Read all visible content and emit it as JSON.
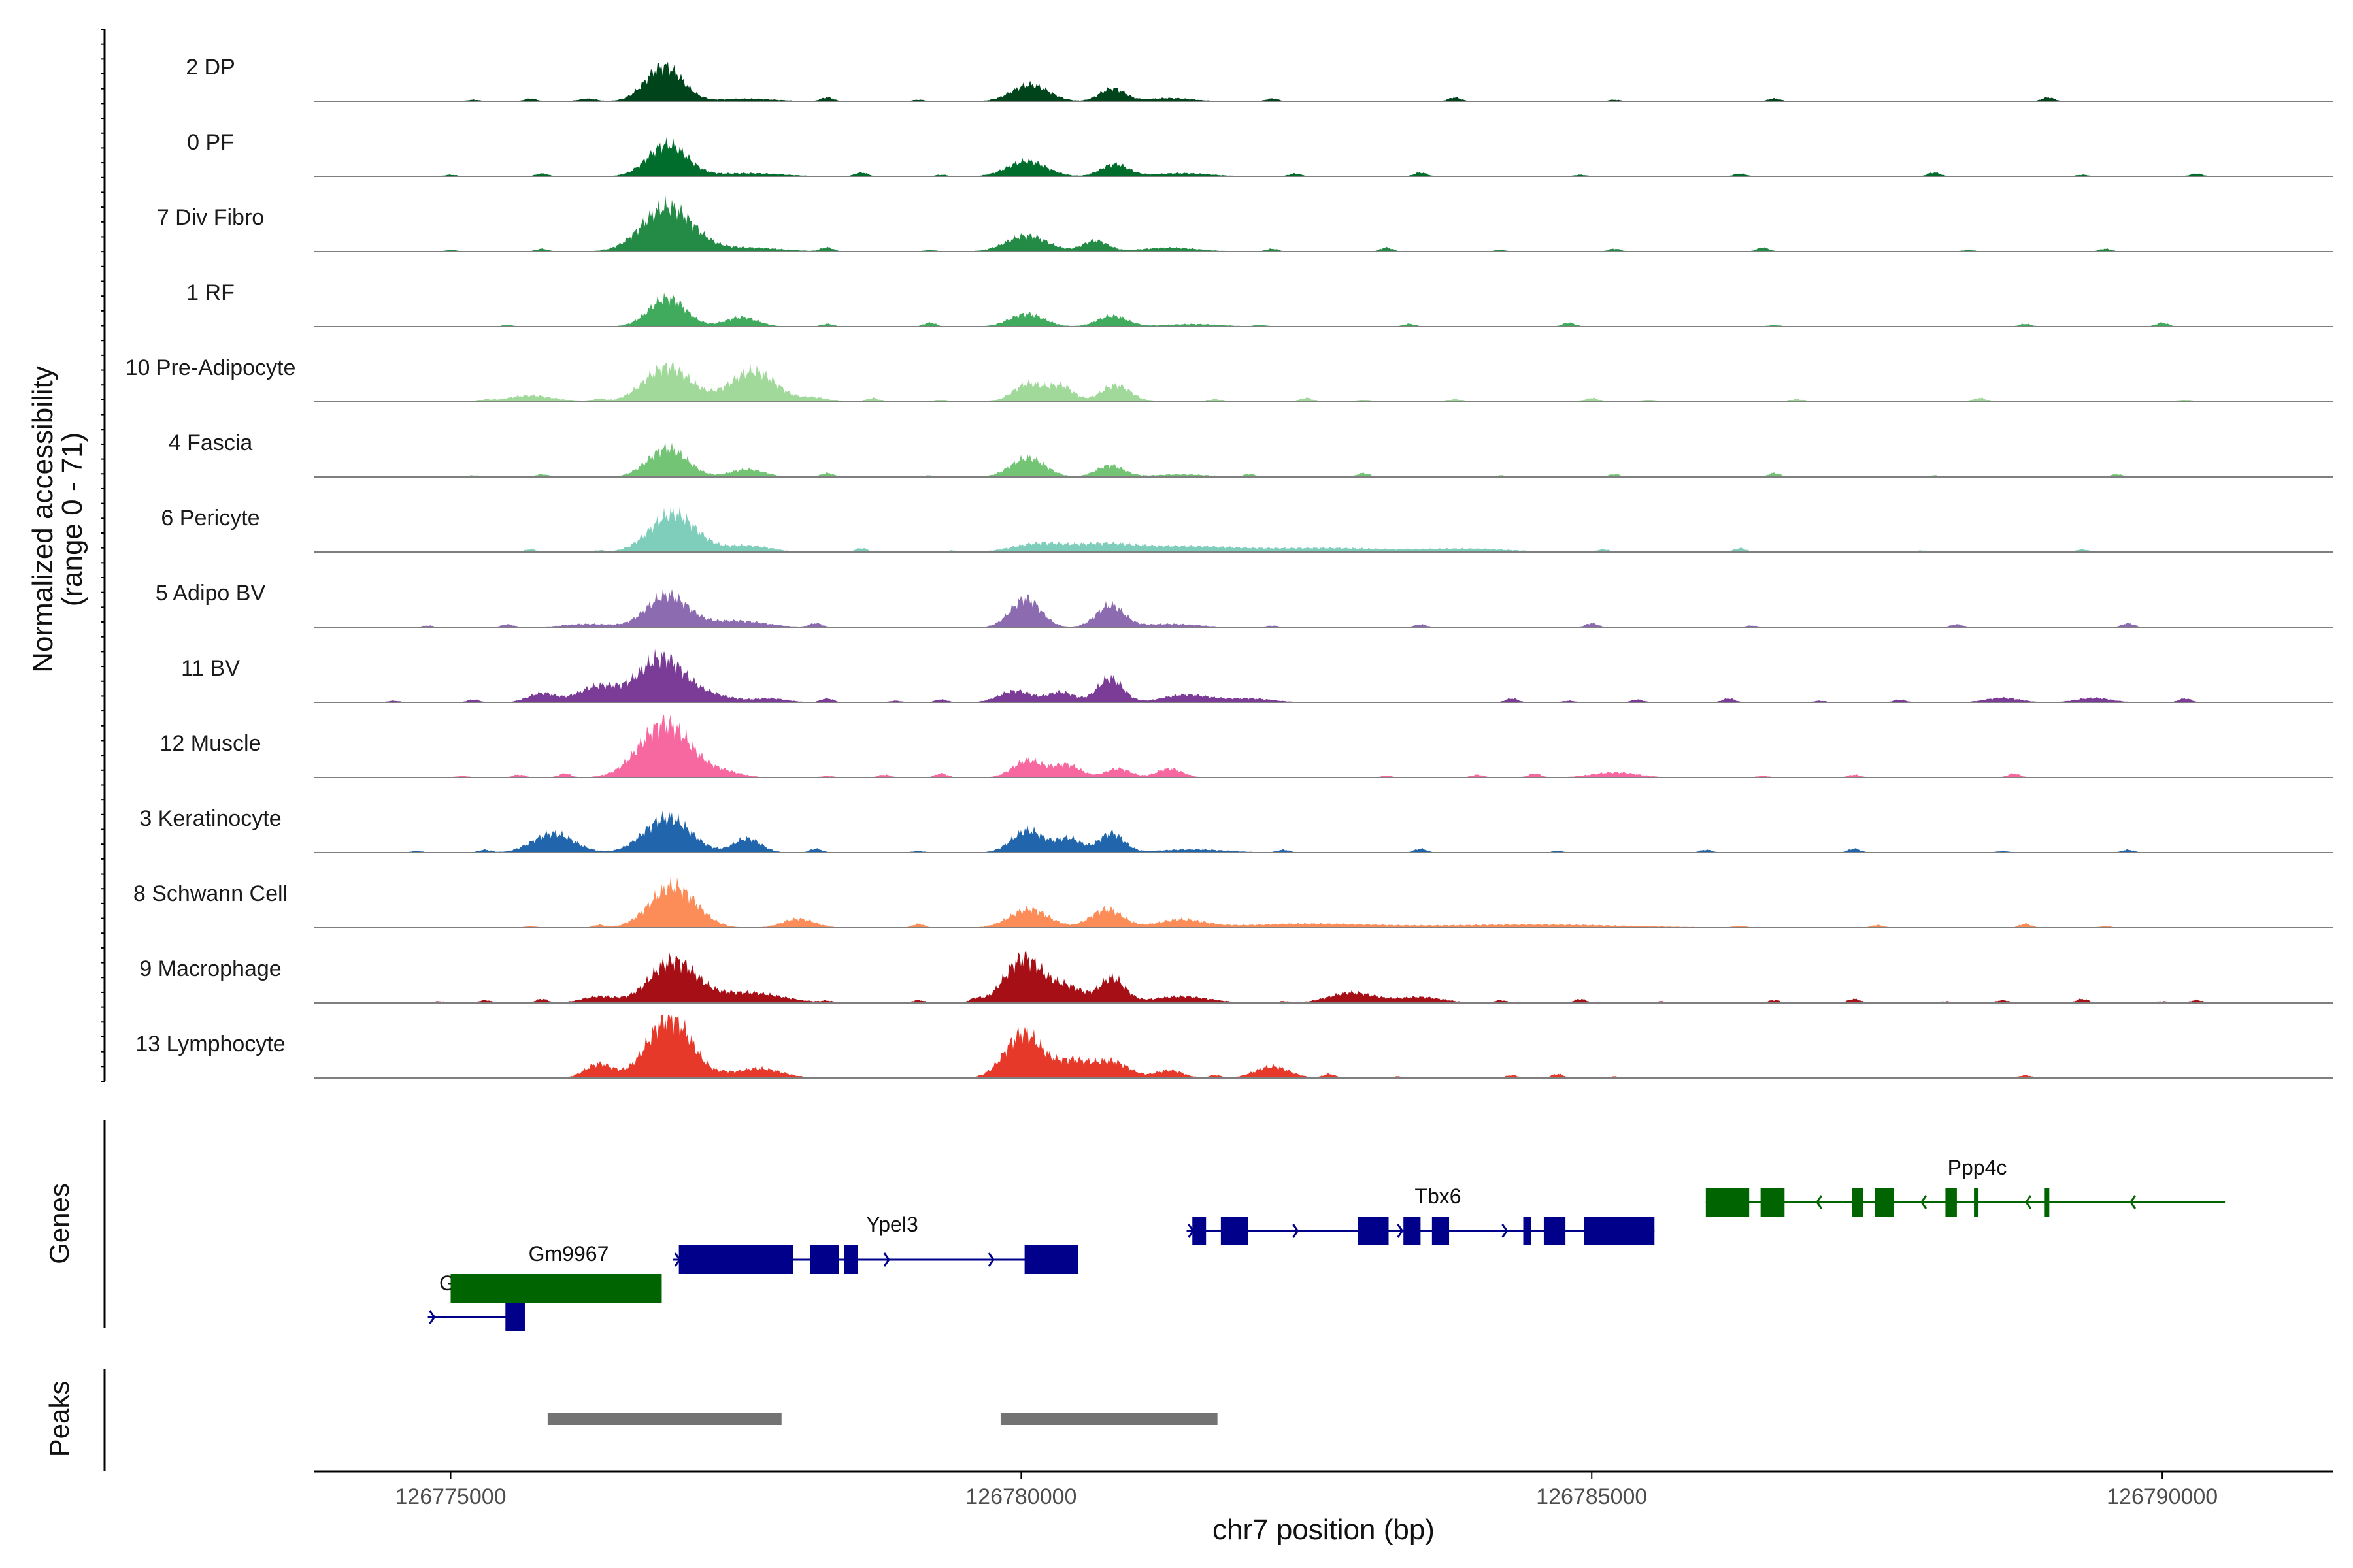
{
  "chart_data": {
    "type": "area",
    "title": "",
    "xlabel": "chr7 position (bp)",
    "ylabel": "Normalized accessibility",
    "ylabel_range": "(range 0 - 71)",
    "ylim": [
      0,
      71
    ],
    "xlim": [
      126773800,
      126791500
    ],
    "x_ticks": [
      126775000,
      126780000,
      126785000,
      126790000
    ],
    "x_tick_labels": [
      "126775000",
      "126780000",
      "126785000",
      "126790000"
    ],
    "tracks": [
      {
        "name": "2 DP",
        "color": "#00441b",
        "peaks": [
          [
            126776870,
            55,
            160
          ],
          [
            126776200,
            4,
            80
          ],
          [
            126780080,
            26,
            160
          ],
          [
            126780800,
            20,
            110
          ],
          [
            126781300,
            5,
            200
          ],
          [
            126777600,
            4,
            250
          ]
        ],
        "scatter": [
          126775200,
          126775700,
          126778300,
          126779100,
          126782200,
          126783800,
          126785200,
          126786600,
          126789000
        ]
      },
      {
        "name": "0 PF",
        "color": "#006d2c",
        "peaks": [
          [
            126776900,
            50,
            170
          ],
          [
            126780050,
            24,
            170
          ],
          [
            126780820,
            19,
            120
          ],
          [
            126777600,
            5,
            300
          ],
          [
            126781400,
            5,
            250
          ]
        ],
        "scatter": [
          126775000,
          126775800,
          126778600,
          126779300,
          126782400,
          126783500,
          126784900,
          126786300,
          126788000,
          126789300,
          126790300
        ]
      },
      {
        "name": "7 Div Fibro",
        "color": "#238b45",
        "peaks": [
          [
            126776900,
            70,
            220
          ],
          [
            126780050,
            25,
            180
          ],
          [
            126780650,
            17,
            110
          ],
          [
            126777600,
            6,
            300
          ],
          [
            126781300,
            6,
            250
          ]
        ],
        "scatter": [
          126775000,
          126775800,
          126778300,
          126779200,
          126782200,
          126783200,
          126784200,
          126785200,
          126786500,
          126788300,
          126789500
        ]
      },
      {
        "name": "1 RF",
        "color": "#41ab5d",
        "peaks": [
          [
            126776900,
            45,
            160
          ],
          [
            126777550,
            15,
            140
          ],
          [
            126780050,
            20,
            150
          ],
          [
            126780800,
            17,
            130
          ],
          [
            126781500,
            4,
            250
          ]
        ],
        "scatter": [
          126775500,
          126778300,
          126779200,
          126782100,
          126783400,
          126784800,
          126786600,
          126788800,
          126790000
        ]
      },
      {
        "name": "10 Pre-Adipocyte",
        "color": "#a1d99b",
        "peaks": [
          [
            126776900,
            55,
            200
          ],
          [
            126777650,
            48,
            200
          ],
          [
            126780060,
            28,
            130
          ],
          [
            126780350,
            24,
            110
          ],
          [
            126780830,
            26,
            130
          ],
          [
            126775700,
            10,
            200
          ],
          [
            126778200,
            6,
            120
          ]
        ],
        "scatter": [
          126775300,
          126776300,
          126778700,
          126779300,
          126781700,
          126782500,
          126783000,
          126783800,
          126785000,
          126785500,
          126786800,
          126788400,
          126790200
        ]
      },
      {
        "name": "4 Fascia",
        "color": "#74c476",
        "peaks": [
          [
            126776900,
            45,
            170
          ],
          [
            126777600,
            12,
            150
          ],
          [
            126780060,
            30,
            150
          ],
          [
            126780780,
            18,
            120
          ],
          [
            126781400,
            4,
            250
          ]
        ],
        "scatter": [
          126775200,
          126775800,
          126778300,
          126779200,
          126782000,
          126783000,
          126784200,
          126785200,
          126786600,
          126788000,
          126789600
        ]
      },
      {
        "name": "6 Pericyte",
        "color": "#7fcdbb",
        "peaks": [
          [
            126776950,
            60,
            200
          ],
          [
            126777600,
            10,
            200
          ],
          [
            126780150,
            13,
            220
          ],
          [
            126780700,
            10,
            250
          ],
          [
            126781400,
            9,
            500
          ],
          [
            126782700,
            6,
            500
          ],
          [
            126783900,
            5,
            400
          ]
        ],
        "scatter": [
          126776300,
          126775700,
          126778600,
          126779400,
          126785100,
          126786300,
          126787900,
          126789300
        ]
      },
      {
        "name": "5 Adipo BV",
        "color": "#8c6bb1",
        "peaks": [
          [
            126776900,
            50,
            180
          ],
          [
            126777500,
            10,
            250
          ],
          [
            126780040,
            45,
            130
          ],
          [
            126780780,
            34,
            120
          ],
          [
            126781300,
            5,
            250
          ],
          [
            126776200,
            5,
            200
          ]
        ],
        "scatter": [
          126774800,
          126775500,
          126778200,
          126782200,
          126783500,
          126785000,
          126786400,
          126788200,
          126789700
        ]
      },
      {
        "name": "11 BV",
        "color": "#7a3c96",
        "peaks": [
          [
            126776850,
            70,
            200
          ],
          [
            126776300,
            25,
            180
          ],
          [
            126775800,
            14,
            120
          ],
          [
            126777300,
            10,
            180
          ],
          [
            126777800,
            6,
            150
          ],
          [
            126779950,
            18,
            140
          ],
          [
            126780350,
            16,
            120
          ],
          [
            126780780,
            38,
            110
          ],
          [
            126781450,
            12,
            200
          ],
          [
            126782000,
            6,
            200
          ],
          [
            126788600,
            7,
            150
          ],
          [
            126789400,
            7,
            150
          ]
        ],
        "scatter": [
          126774500,
          126775200,
          126778300,
          126778900,
          126779300,
          126784300,
          126784800,
          126785400,
          126786200,
          126787000,
          126787700,
          126790200
        ]
      },
      {
        "name": "12 Muscle",
        "color": "#f768a1",
        "peaks": [
          [
            126776880,
            85,
            220
          ],
          [
            126780060,
            27,
            130
          ],
          [
            126780400,
            20,
            120
          ],
          [
            126780850,
            14,
            110
          ],
          [
            126781300,
            14,
            110
          ],
          [
            126777400,
            8,
            150
          ],
          [
            126785200,
            8,
            200
          ]
        ],
        "scatter": [
          126775100,
          126775600,
          126776000,
          126778300,
          126778800,
          126779300,
          126783200,
          126784000,
          126784500,
          126786500,
          126787300,
          126788700
        ]
      },
      {
        "name": "3 Keratinocyte",
        "color": "#2166ac",
        "peaks": [
          [
            126776900,
            55,
            200
          ],
          [
            126775900,
            30,
            180
          ],
          [
            126777600,
            22,
            120
          ],
          [
            126780060,
            35,
            140
          ],
          [
            126780420,
            22,
            110
          ],
          [
            126780790,
            30,
            110
          ],
          [
            126781500,
            5,
            300
          ]
        ],
        "scatter": [
          126774700,
          126775300,
          126778200,
          126779100,
          126782300,
          126783500,
          126784700,
          126786000,
          126787300,
          126788600,
          126789700
        ]
      },
      {
        "name": "8 Schwann Cell",
        "color": "#fc8d59",
        "peaks": [
          [
            126776950,
            65,
            200
          ],
          [
            126778050,
            14,
            140
          ],
          [
            126780070,
            29,
            170
          ],
          [
            126780750,
            29,
            140
          ],
          [
            126781400,
            12,
            200
          ],
          [
            126782500,
            6,
            600
          ],
          [
            126784500,
            5,
            800
          ]
        ],
        "scatter": [
          126775700,
          126776300,
          126779100,
          126786300,
          126787500,
          126788800,
          126789500
        ]
      },
      {
        "name": "9 Macrophage",
        "color": "#a50f15",
        "peaks": [
          [
            126776950,
            65,
            200
          ],
          [
            126777600,
            16,
            300
          ],
          [
            126780020,
            70,
            160
          ],
          [
            126780400,
            25,
            150
          ],
          [
            126780800,
            38,
            110
          ],
          [
            126776300,
            10,
            150
          ],
          [
            126781400,
            10,
            250
          ],
          [
            126782900,
            16,
            200
          ],
          [
            126783500,
            9,
            200
          ]
        ],
        "scatter": [
          126774900,
          126775300,
          126775800,
          126778300,
          126779100,
          126779600,
          126782300,
          126784200,
          126784900,
          126785600,
          126786600,
          126787300,
          126788100,
          126788600,
          126789300,
          126790000,
          126790300
        ]
      },
      {
        "name": "13 Lymphocyte",
        "color": "#e6392a",
        "peaks": [
          [
            126776920,
            95,
            190
          ],
          [
            126776300,
            22,
            120
          ],
          [
            126777700,
            15,
            200
          ],
          [
            126780020,
            70,
            160
          ],
          [
            126780450,
            26,
            150
          ],
          [
            126780800,
            25,
            150
          ],
          [
            126781300,
            12,
            120
          ],
          [
            126782200,
            18,
            150
          ]
        ],
        "scatter": [
          126777400,
          126781700,
          126782700,
          126783300,
          126784300,
          126784700,
          126785200,
          126788800
        ]
      }
    ],
    "genes": [
      {
        "name": "Gdpd3",
        "color": "#00008b",
        "row": 3,
        "start": 126774800,
        "end": 126775650,
        "strand": "+",
        "exons": [
          [
            126775480,
            126775650
          ]
        ]
      },
      {
        "name": "Gm9967",
        "color": "#006400",
        "row": 2,
        "start": 126775000,
        "end": 126776850,
        "strand": "+",
        "exons": [
          [
            126775000,
            126776850
          ]
        ]
      },
      {
        "name": "Ypel3",
        "color": "#00008b",
        "row": 1,
        "start": 126776950,
        "end": 126780500,
        "strand": "+",
        "exons": [
          [
            126777000,
            126778000
          ],
          [
            126778150,
            126778400
          ],
          [
            126778450,
            126778570
          ],
          [
            126780030,
            126780500
          ]
        ]
      },
      {
        "name": "Tbx6",
        "color": "#00008b",
        "row": 0,
        "start": 126781450,
        "end": 126785550,
        "strand": "+",
        "exons": [
          [
            126781500,
            126781620
          ],
          [
            126781750,
            126781990
          ],
          [
            126782950,
            126783220
          ],
          [
            126783350,
            126783500
          ],
          [
            126783600,
            126783750
          ],
          [
            126784400,
            126784470
          ],
          [
            126784580,
            126784770
          ],
          [
            126784930,
            126785550
          ]
        ]
      },
      {
        "name": "Ppp4c",
        "color": "#006400",
        "row": -1,
        "start": 126786000,
        "end": 126790550,
        "strand": "-",
        "exons": [
          [
            126786000,
            126786380
          ],
          [
            126786480,
            126786690
          ],
          [
            126787280,
            126787380
          ],
          [
            126787480,
            126787650
          ],
          [
            126788100,
            126788200
          ],
          [
            126788350,
            126788390
          ],
          [
            126788970,
            126789010
          ]
        ]
      }
    ],
    "peaks": [
      {
        "start": 126775850,
        "end": 126777900
      },
      {
        "start": 126779820,
        "end": 126781720
      }
    ],
    "panel_labels": {
      "genes": "Genes",
      "peaks": "Peaks"
    },
    "colors": {
      "axis": "#000000",
      "baseline": "#7f7f7f",
      "peak_bar": "#737373"
    }
  }
}
